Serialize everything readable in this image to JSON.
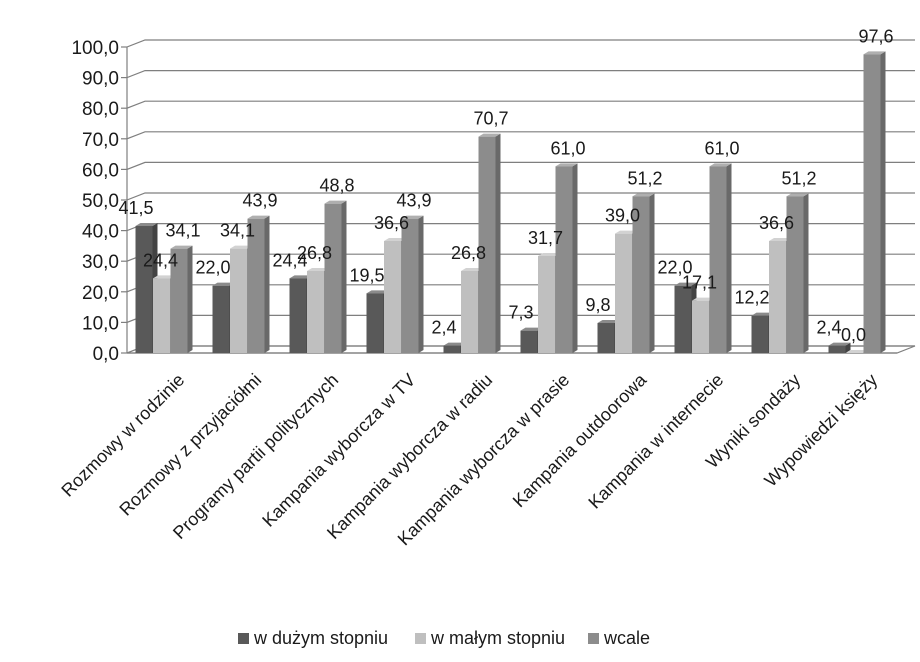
{
  "chart_data": {
    "type": "bar",
    "categories": [
      "Rozmowy w rodzinie",
      "Rozmowy z przyjaciółmi",
      "Programy partii politycznych",
      "Kampania wyborcza w TV",
      "Kampania wyborcza w radiu",
      "Kampania wyborcza w prasie",
      "Kampania outdoorowa",
      "Kampania w internecie",
      "Wyniki sondaży",
      "Wypowiedzi księży"
    ],
    "series": [
      {
        "name": "w dużym stopniu",
        "color": "#595959",
        "values": [
          41.5,
          22.0,
          24.4,
          19.5,
          2.4,
          7.3,
          9.8,
          22.0,
          12.2,
          2.4
        ],
        "labels": [
          "41,5",
          "22,0",
          "24,4",
          "19,5",
          "2,4",
          "7,3",
          "9,8",
          "22,0",
          "12,2",
          "2,4"
        ]
      },
      {
        "name": "w małym stopniu",
        "color": "#bfbfbf",
        "values": [
          24.4,
          34.1,
          26.8,
          36.6,
          26.8,
          31.7,
          39.0,
          17.1,
          36.6,
          0.0
        ],
        "labels": [
          "24,4",
          "34,1",
          "26,8",
          "36,6",
          "26,8",
          "31,7",
          "39,0",
          "17,1",
          "36,6",
          "0,0"
        ]
      },
      {
        "name": "wcale",
        "color": "#8c8c8c",
        "values": [
          34.1,
          43.9,
          48.8,
          43.9,
          70.7,
          61.0,
          51.2,
          61.0,
          51.2,
          97.6
        ],
        "labels": [
          "34,1",
          "43,9",
          "48,8",
          "43,9",
          "70,7",
          "61,0",
          "51,2",
          "61,0",
          "51,2",
          "97,6"
        ]
      }
    ],
    "yticks": [
      "0,0",
      "10,0",
      "20,0",
      "30,0",
      "40,0",
      "50,0",
      "60,0",
      "70,0",
      "80,0",
      "90,0",
      "100,0"
    ],
    "ylim": [
      0,
      100
    ],
    "grid": true,
    "legend": "bottom"
  }
}
